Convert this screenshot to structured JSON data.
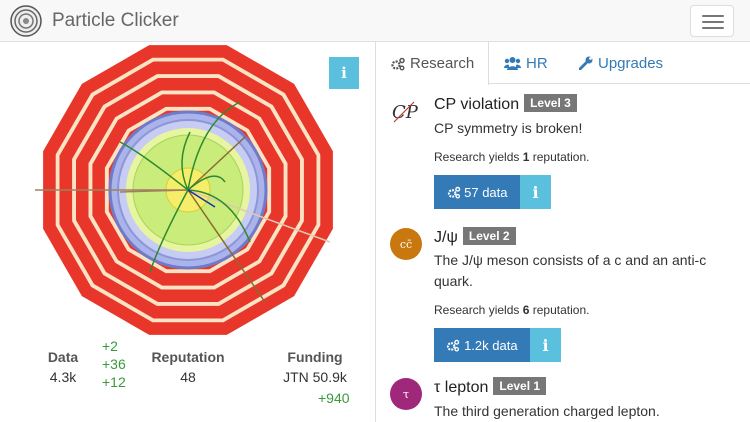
{
  "header": {
    "title": "Particle Clicker",
    "menu_icon": "hamburger-icon"
  },
  "detector": {
    "info_label": "i"
  },
  "stats": {
    "data": {
      "label": "Data",
      "value": "4.3k"
    },
    "reputation": {
      "label": "Reputation",
      "value": "48"
    },
    "funding": {
      "label": "Funding",
      "value": "JTN 50.9k"
    },
    "floating": [
      "+2",
      "+36",
      "+12",
      "+940"
    ]
  },
  "tabs": [
    {
      "label": "Research",
      "icon": "cogs-icon",
      "active": true
    },
    {
      "label": "HR",
      "icon": "users-icon"
    },
    {
      "label": "Upgrades",
      "icon": "wrench-icon"
    }
  ],
  "research": [
    {
      "name": "CP violation",
      "level": "Level 3",
      "icon_text": "CP",
      "desc": "CP symmetry is broken!",
      "yields_pre": "Research yields ",
      "yields_num": "1",
      "yields_post": " reputation.",
      "cost": "57 data",
      "info": "i"
    },
    {
      "name": "J/ψ",
      "level": "Level 2",
      "icon_text": "cc̄",
      "icon_color": "#c8780e",
      "desc": "The J/ψ meson consists of a c and an anti-c quark.",
      "yields_pre": "Research yields ",
      "yields_num": "6",
      "yields_post": " reputation.",
      "cost": "1.2k data",
      "info": "i"
    },
    {
      "name": "τ lepton",
      "level": "Level 1",
      "icon_text": "τ",
      "icon_color": "#a0287a",
      "desc": "The third generation charged lepton."
    }
  ],
  "colors": {
    "primary": "#337ab7",
    "info": "#5bc0de",
    "badge": "#777777",
    "detector_red": "#e8362a",
    "detector_cream": "#fbe3c4"
  }
}
